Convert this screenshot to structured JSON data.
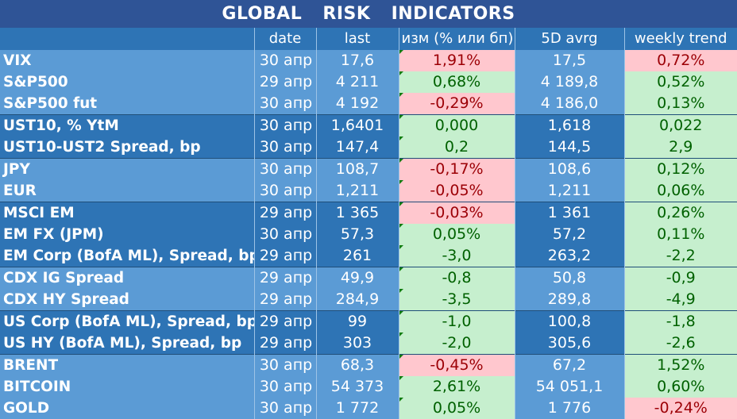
{
  "title": "GLOBAL   RISK   INDICATORS",
  "headers": {
    "name": "",
    "date": "date",
    "last": "last",
    "chg": "изм (% или бп)",
    "avg": "5D avrg",
    "trend": "weekly trend"
  },
  "rows": [
    {
      "name": "VIX",
      "date": "30 апр",
      "last": "17,6",
      "chg": "1,91%",
      "chg_sign": "neg",
      "avg": "17,5",
      "trend": "0,72%",
      "trend_sign": "neg",
      "group": "lite"
    },
    {
      "name": "S&P500",
      "date": "29 апр",
      "last": "4 211",
      "chg": "0,68%",
      "chg_sign": "pos",
      "avg": "4 189,8",
      "trend": "0,52%",
      "trend_sign": "pos",
      "group": "lite"
    },
    {
      "name": "S&P500 fut",
      "date": "30 апр",
      "last": "4 192",
      "chg": "-0,29%",
      "chg_sign": "neg",
      "avg": "4 186,0",
      "trend": "0,13%",
      "trend_sign": "pos",
      "group": "lite"
    },
    {
      "name": "UST10, % YtM",
      "date": "30 апр",
      "last": "1,6401",
      "chg": "0,000",
      "chg_sign": "pos",
      "avg": "1,618",
      "trend": "0,022",
      "trend_sign": "pos",
      "group": "dark"
    },
    {
      "name": "UST10-UST2 Spread, bp",
      "date": "30 апр",
      "last": "147,4",
      "chg": "0,2",
      "chg_sign": "pos",
      "avg": "144,5",
      "trend": "2,9",
      "trend_sign": "pos",
      "group": "dark"
    },
    {
      "name": "JPY",
      "date": "30 апр",
      "last": "108,7",
      "chg": "-0,17%",
      "chg_sign": "neg",
      "avg": "108,6",
      "trend": "0,12%",
      "trend_sign": "pos",
      "group": "lite"
    },
    {
      "name": "EUR",
      "date": "30 апр",
      "last": "1,211",
      "chg": "-0,05%",
      "chg_sign": "neg",
      "avg": "1,211",
      "trend": "0,06%",
      "trend_sign": "pos",
      "group": "lite"
    },
    {
      "name": "MSCI EM",
      "date": "29 апр",
      "last": "1 365",
      "chg": "-0,03%",
      "chg_sign": "neg",
      "avg": "1 361",
      "trend": "0,26%",
      "trend_sign": "pos",
      "group": "dark"
    },
    {
      "name": "EM FX (JPM)",
      "date": "30 апр",
      "last": "57,3",
      "chg": "0,05%",
      "chg_sign": "pos",
      "avg": "57,2",
      "trend": "0,11%",
      "trend_sign": "pos",
      "group": "dark"
    },
    {
      "name": "EM Corp (BofA ML), Spread, bp",
      "date": "29 апр",
      "last": "261",
      "chg": "-3,0",
      "chg_sign": "pos",
      "avg": "263,2",
      "trend": "-2,2",
      "trend_sign": "pos",
      "group": "dark"
    },
    {
      "name": "CDX IG Spread",
      "date": "29 апр",
      "last": "49,9",
      "chg": "-0,8",
      "chg_sign": "pos",
      "avg": "50,8",
      "trend": "-0,9",
      "trend_sign": "pos",
      "group": "lite"
    },
    {
      "name": "CDX HY Spread",
      "date": "29 апр",
      "last": "284,9",
      "chg": "-3,5",
      "chg_sign": "pos",
      "avg": "289,8",
      "trend": "-4,9",
      "trend_sign": "pos",
      "group": "lite"
    },
    {
      "name": "US Corp (BofA ML), Spread, bp",
      "date": "29 апр",
      "last": "99",
      "chg": "-1,0",
      "chg_sign": "pos",
      "avg": "100,8",
      "trend": "-1,8",
      "trend_sign": "pos",
      "group": "dark"
    },
    {
      "name": "US HY (BofA ML), Spread, bp",
      "date": "29 апр",
      "last": "303",
      "chg": "-2,0",
      "chg_sign": "pos",
      "avg": "305,6",
      "trend": "-2,6",
      "trend_sign": "pos",
      "group": "dark"
    },
    {
      "name": "BRENT",
      "date": "30 апр",
      "last": "68,3",
      "chg": "-0,45%",
      "chg_sign": "neg",
      "avg": "67,2",
      "trend": "1,52%",
      "trend_sign": "pos",
      "group": "lite"
    },
    {
      "name": "BITCOIN",
      "date": "30 апр",
      "last": "54 373",
      "chg": "2,61%",
      "chg_sign": "pos",
      "avg": "54 051,1",
      "trend": "0,60%",
      "trend_sign": "pos",
      "group": "lite"
    },
    {
      "name": "GOLD",
      "date": "30 апр",
      "last": "1 772",
      "chg": "0,05%",
      "chg_sign": "pos",
      "avg": "1 776",
      "trend": "-0,24%",
      "trend_sign": "neg",
      "group": "lite"
    }
  ],
  "colors": {
    "title_bg": "#2f5496",
    "group_lite": "#5b9bd5",
    "group_dark": "#2e74b5",
    "positive_bg": "#c6efce",
    "positive_text": "#006100",
    "negative_bg": "#ffc7ce",
    "negative_text": "#9c0006"
  }
}
